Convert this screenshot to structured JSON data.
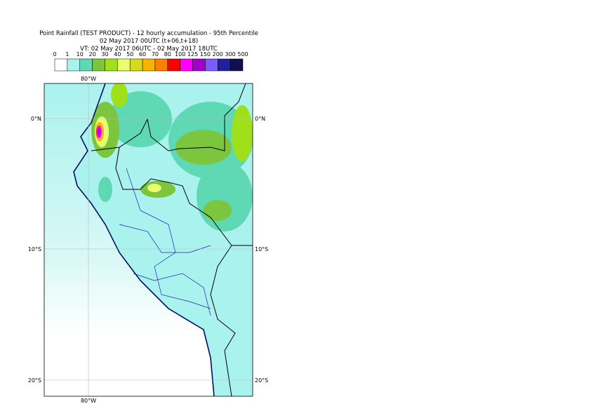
{
  "header": {
    "title": "Point Rainfall (TEST PRODUCT) - 12 hourly accumulation - 95th Percentile",
    "subtitle": "02 May 2017 00UTC (t+06,t+18)",
    "valid": "VT: 02 May 2017 06UTC - 02 May 2017 18UTC"
  },
  "legend": {
    "labels": [
      "0",
      "1",
      "10",
      "20",
      "30",
      "40",
      "50",
      "60",
      "70",
      "80",
      "100",
      "125",
      "150",
      "200",
      "300",
      "500"
    ],
    "colors": [
      "#ffffff",
      "#aaf2ee",
      "#5fd8b4",
      "#7cc63e",
      "#a0e01a",
      "#e8ff70",
      "#d8d820",
      "#f7b500",
      "#ff7f00",
      "#ff0000",
      "#ff00ff",
      "#a000c8",
      "#7a5cff",
      "#2020a0",
      "#101050"
    ]
  },
  "map": {
    "lon_labels": [
      "80°W"
    ],
    "lat_labels": [
      "0°N",
      "10°S",
      "20°S"
    ]
  }
}
